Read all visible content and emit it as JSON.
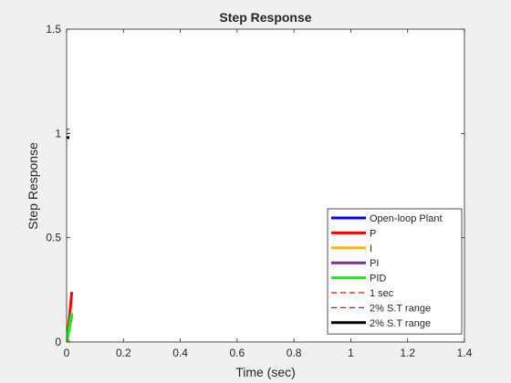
{
  "chart_data": {
    "type": "line",
    "title": "Step Response",
    "xlabel": "Time (sec)",
    "ylabel": "Step Response",
    "xlim": [
      0,
      1.4
    ],
    "ylim": [
      0,
      1.5
    ],
    "xticks": [
      0,
      0.2,
      0.4,
      0.6,
      0.8,
      1,
      1.2,
      1.4
    ],
    "xtick_labels": [
      "0",
      "0.2",
      "0.4",
      "0.6",
      "0.8",
      "1",
      "1.2",
      "1.4"
    ],
    "yticks": [
      0,
      0.5,
      1,
      1.5
    ],
    "ytick_labels": [
      "0",
      "0.5",
      "1",
      "1.5"
    ],
    "grid": false,
    "legend_position": "bottom-right",
    "series": [
      {
        "name": "Open-loop Plant",
        "color": "#0000ff",
        "style": "solid",
        "x": [
          0,
          0.01
        ],
        "y": [
          0,
          0.01
        ]
      },
      {
        "name": "P",
        "color": "#ff0000",
        "style": "solid",
        "x": [
          0,
          0.003,
          0.008,
          0.013,
          0.018
        ],
        "y": [
          0,
          0.03,
          0.09,
          0.16,
          0.24
        ]
      },
      {
        "name": "I",
        "color": "#ffb31a",
        "style": "solid",
        "x": [
          0,
          0.01
        ],
        "y": [
          0,
          0.01
        ]
      },
      {
        "name": "PI",
        "color": "#7e2f8e",
        "style": "solid",
        "x": [
          0,
          0.01,
          0.018
        ],
        "y": [
          0,
          0.07,
          0.13
        ]
      },
      {
        "name": "PID",
        "color": "#00ff00",
        "style": "solid",
        "x": [
          0,
          0.004,
          0.009,
          0.014,
          0.018
        ],
        "y": [
          0,
          0.03,
          0.07,
          0.11,
          0.14
        ]
      },
      {
        "name": "1 sec",
        "color": "#ff0000",
        "style": "dashed",
        "x": [
          0,
          0.01
        ],
        "y": [
          1.0,
          1.0
        ]
      },
      {
        "name": "2% S.T range",
        "color": "#ff0000",
        "style": "dashed",
        "x": [
          0,
          0.01
        ],
        "y": [
          1.02,
          1.02
        ]
      },
      {
        "name": "2% S.T range",
        "color": "#000000",
        "style": "solid",
        "x": [
          0,
          0.01
        ],
        "y": [
          0.98,
          0.98
        ]
      }
    ]
  }
}
